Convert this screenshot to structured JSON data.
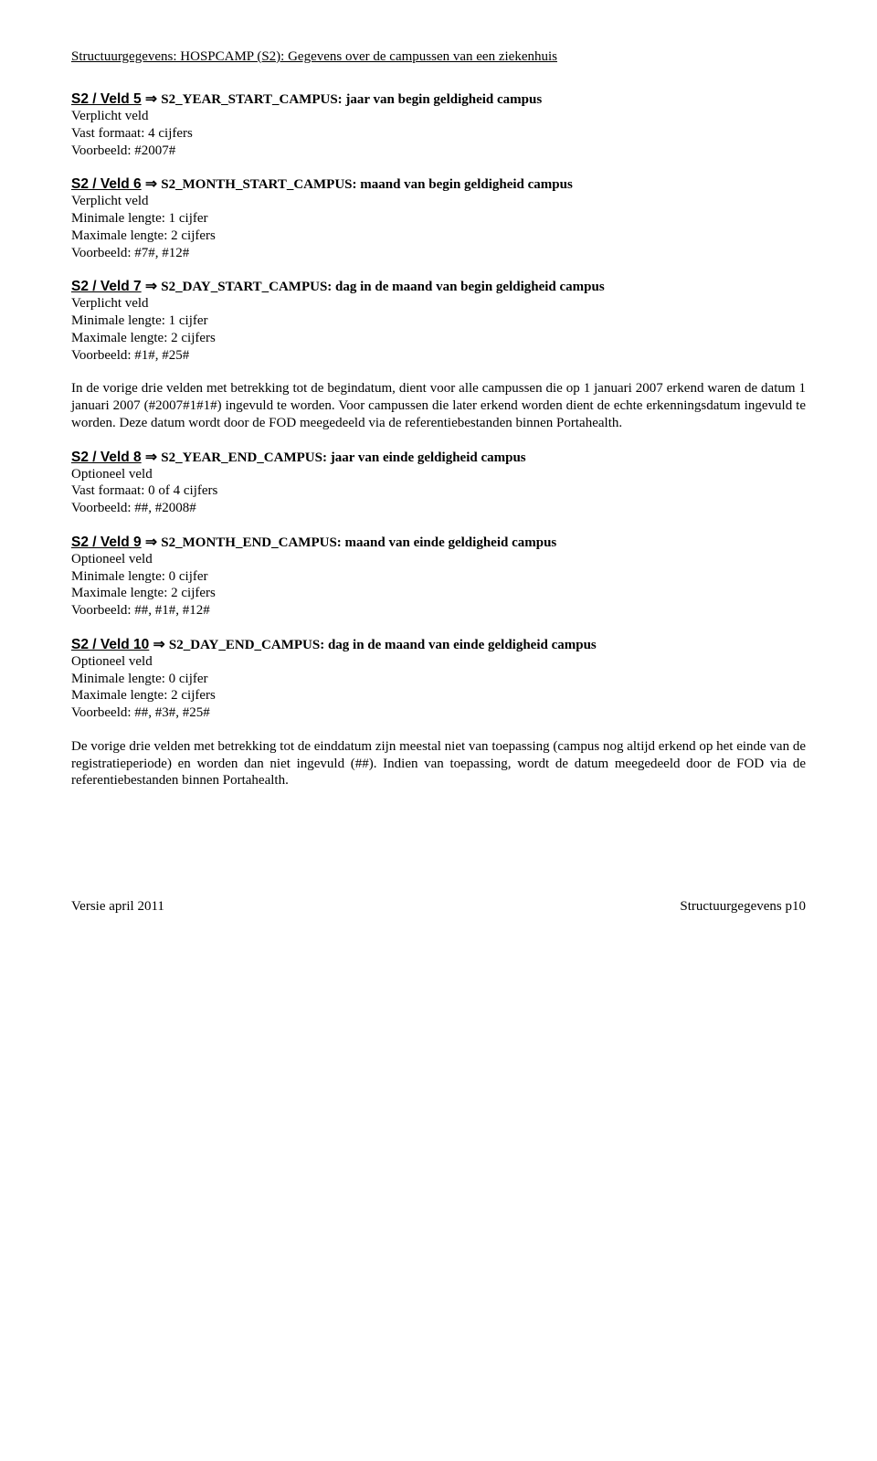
{
  "header": "Structuurgegevens: HOSPCAMP (S2): Gegevens over de campussen van een ziekenhuis",
  "veld5": {
    "lead": "S2 / Veld 5",
    "arrow": " ⇒ ",
    "title": "S2_YEAR_START_CAMPUS: jaar van begin geldigheid campus",
    "l1": "Verplicht veld",
    "l2": "Vast formaat: 4 cijfers",
    "l3": "Voorbeeld: #2007#"
  },
  "veld6": {
    "lead": "S2 / Veld 6",
    "arrow": " ⇒ ",
    "title": "S2_MONTH_START_CAMPUS: maand van begin geldigheid campus",
    "l1": "Verplicht veld",
    "l2": "Minimale lengte:  1 cijfer",
    "l3": "Maximale lengte: 2 cijfers",
    "l4": "Voorbeeld: #7#, #12#"
  },
  "veld7": {
    "lead": "S2 / Veld 7",
    "arrow": " ⇒ ",
    "title": "S2_DAY_START_CAMPUS: dag in de maand van begin geldigheid campus",
    "l1": "Verplicht veld",
    "l2": "Minimale lengte:  1 cijfer",
    "l3": "Maximale lengte: 2 cijfers",
    "l4": "Voorbeeld: #1#, #25#"
  },
  "para1": "In de vorige drie velden met betrekking tot de begindatum, dient voor alle campussen die op 1 januari 2007 erkend waren de datum 1 januari 2007 (#2007#1#1#) ingevuld te worden. Voor campussen die later erkend worden dient de echte erkenningsdatum ingevuld te worden. Deze datum wordt door de FOD meegedeeld via de referentiebestanden binnen Portahealth.",
  "veld8": {
    "lead": "S2 / Veld 8",
    "arrow": " ⇒ ",
    "title": "S2_YEAR_END_CAMPUS: jaar van einde geldigheid campus",
    "l1": "Optioneel veld",
    "l2": "Vast formaat: 0 of 4 cijfers",
    "l3": "Voorbeeld: ##, #2008#"
  },
  "veld9": {
    "lead": "S2 / Veld 9",
    "arrow": " ⇒ ",
    "title": "S2_MONTH_END_CAMPUS: maand van einde geldigheid campus",
    "l1": "Optioneel veld",
    "l2": "Minimale lengte:  0 cijfer",
    "l3": "Maximale lengte: 2 cijfers",
    "l4": "Voorbeeld:  ##, #1#, #12#"
  },
  "veld10": {
    "lead": "S2 / Veld 10",
    "arrow": " ⇒ ",
    "title": "S2_DAY_END_CAMPUS: dag in de maand van einde geldigheid campus",
    "l1": "Optioneel veld",
    "l2": "Minimale lengte:  0 cijfer",
    "l3": "Maximale lengte: 2 cijfers",
    "l4": "Voorbeeld:  ##, #3#, #25#"
  },
  "para2": "De vorige drie velden met betrekking tot de einddatum zijn meestal niet van toepassing (campus nog altijd erkend op het einde van de registratieperiode) en worden dan niet ingevuld (##). Indien van toepassing, wordt de datum meegedeeld door de FOD via de referentiebestanden binnen Portahealth.",
  "footer": {
    "left": "Versie april 2011",
    "right": "Structuurgegevens p10"
  }
}
